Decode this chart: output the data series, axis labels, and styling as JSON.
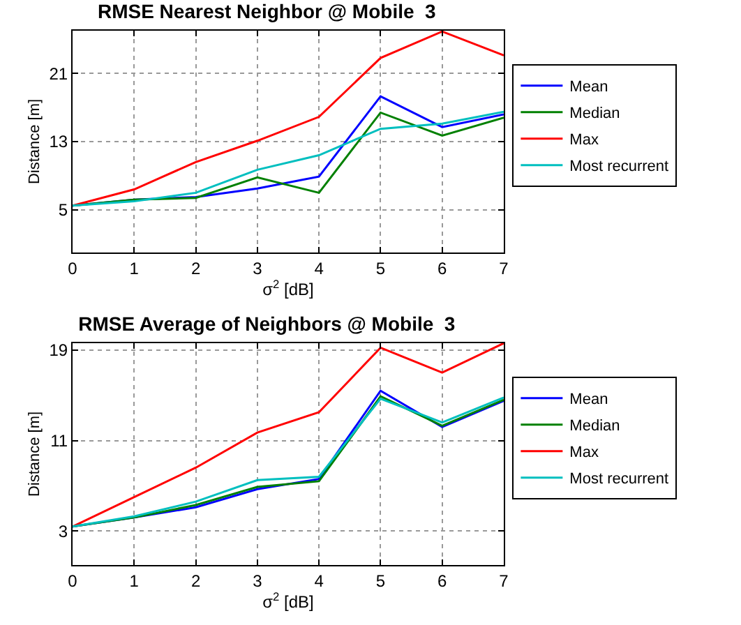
{
  "chart_data": [
    {
      "type": "line",
      "title": "RMSE Nearest Neighbor @ Mobile  3",
      "xlabel": "σ$^{2}$ [dB]",
      "ylabel": "Distance [m]",
      "x": [
        0,
        1,
        2,
        3,
        4,
        5,
        6,
        7
      ],
      "xlim": [
        0,
        7
      ],
      "xticks": [
        0,
        1,
        2,
        3,
        4,
        5,
        6,
        7
      ],
      "ylim": [
        0,
        26
      ],
      "yticks": [
        5,
        13,
        21
      ],
      "grid": true,
      "legend": "right",
      "line_style": "solid",
      "series": [
        {
          "name": "Mean",
          "color": "#0000ff",
          "values": [
            5.5,
            6.2,
            6.5,
            7.5,
            8.9,
            18.3,
            14.7,
            16.2
          ]
        },
        {
          "name": "Median",
          "color": "#008000",
          "values": [
            5.5,
            6.2,
            6.4,
            8.8,
            7.0,
            16.4,
            13.7,
            15.8
          ]
        },
        {
          "name": "Max",
          "color": "#ff0000",
          "values": [
            5.5,
            7.4,
            10.6,
            13.1,
            15.9,
            22.8,
            25.9,
            23.1
          ]
        },
        {
          "name": "Most recurrent",
          "color": "#00bfbf",
          "values": [
            5.5,
            6.0,
            7.0,
            9.7,
            11.4,
            14.5,
            15.1,
            16.5
          ]
        }
      ]
    },
    {
      "type": "line",
      "title": "RMSE Average of Neighbors @ Mobile  3",
      "xlabel": "σ$^{2}$ [dB]",
      "ylabel": "Distance [m]",
      "x": [
        0,
        1,
        2,
        3,
        4,
        5,
        6,
        7
      ],
      "xlim": [
        0,
        7
      ],
      "xticks": [
        0,
        1,
        2,
        3,
        4,
        5,
        6,
        7
      ],
      "ylim": [
        0,
        19.6
      ],
      "yticks": [
        3,
        11,
        19
      ],
      "grid": true,
      "legend": "right",
      "line_style": "solid",
      "series": [
        {
          "name": "Mean",
          "color": "#0000ff",
          "values": [
            3.4,
            4.2,
            5.1,
            6.7,
            7.6,
            15.4,
            12.2,
            14.5
          ]
        },
        {
          "name": "Median",
          "color": "#008000",
          "values": [
            3.4,
            4.2,
            5.3,
            6.9,
            7.4,
            14.9,
            12.3,
            14.6
          ]
        },
        {
          "name": "Max",
          "color": "#ff0000",
          "values": [
            3.4,
            6.0,
            8.6,
            11.7,
            13.5,
            19.2,
            17.0,
            19.6
          ]
        },
        {
          "name": "Most recurrent",
          "color": "#00bfbf",
          "values": [
            3.4,
            4.3,
            5.6,
            7.5,
            7.8,
            14.7,
            12.6,
            14.8
          ]
        }
      ]
    }
  ]
}
